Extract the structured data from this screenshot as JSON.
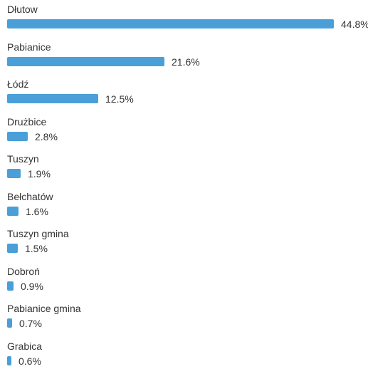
{
  "chart_data": {
    "type": "bar",
    "orientation": "horizontal",
    "categories": [
      "Dłutow",
      "Pabianice",
      "Łódź",
      "Drużbice",
      "Tuszyn",
      "Bełchatów",
      "Tuszyn gmina",
      "Dobroń",
      "Pabianice gmina",
      "Grabica"
    ],
    "values": [
      44.8,
      21.6,
      12.5,
      2.8,
      1.9,
      1.6,
      1.5,
      0.9,
      0.7,
      0.6
    ],
    "value_labels": [
      "44.8%",
      "21.6%",
      "12.5%",
      "2.8%",
      "1.9%",
      "1.6%",
      "1.5%",
      "0.9%",
      "0.7%",
      "0.6%"
    ],
    "unit": "%",
    "bar_color": "#4a9fd8",
    "grid": false,
    "legend": "none"
  }
}
